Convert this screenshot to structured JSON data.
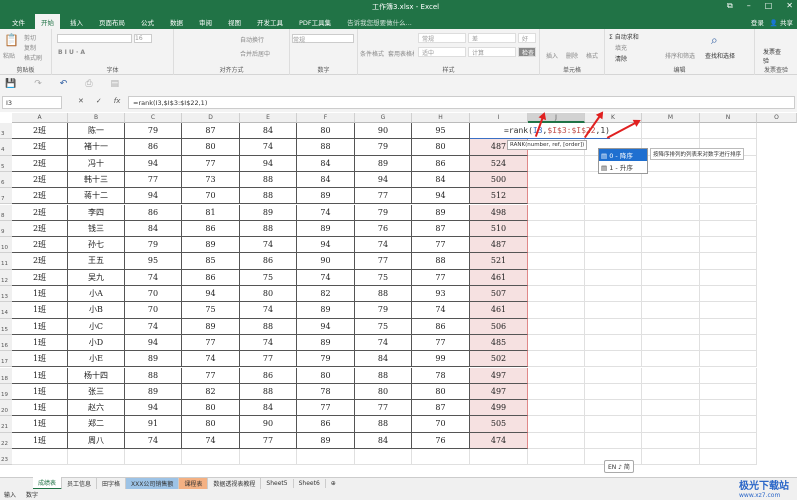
{
  "window": {
    "title": "工作簿3.xlsx - Excel",
    "controls": [
      "⧉",
      "–",
      "□",
      "✕"
    ]
  },
  "ribbon_tabs": [
    "文件",
    "开始",
    "插入",
    "页面布局",
    "公式",
    "数据",
    "审阅",
    "视图",
    "开发工具",
    "PDF工具集"
  ],
  "active_tab": "开始",
  "tell_me": "告诉我您想要做什么...",
  "account": {
    "login": "登录",
    "share": "共享"
  },
  "ribbon": {
    "clipboard": {
      "label": "剪贴板",
      "paste": "粘贴",
      "cut": "剪切",
      "copy": "复制",
      "format_painter": "格式刷"
    },
    "font": {
      "label": "字体",
      "size": "16"
    },
    "alignment": {
      "label": "对齐方式",
      "wrap": "自动换行",
      "merge": "合并后居中"
    },
    "number": {
      "label": "数字",
      "format": "常规"
    },
    "styles": {
      "label": "样式",
      "conditional": "条件格式",
      "table": "套用表格格式",
      "cells": [
        "常规",
        "差",
        "好",
        "适中",
        "计算",
        "检查单元格"
      ]
    },
    "cells": {
      "label": "单元格",
      "insert": "插入",
      "delete": "删除",
      "format": "格式"
    },
    "editing": {
      "label": "编辑",
      "autosum": "自动求和",
      "fill": "填充",
      "clear": "清除",
      "sort": "排序和筛选",
      "find": "查找和选择"
    },
    "invoice": {
      "label": "发票查验",
      "button": "发票查验"
    }
  },
  "formula_bar": {
    "name_box": "I3",
    "formula": "=rank(I3,$I$3:$I$22,1)",
    "cancel": "✕",
    "enter": "✓",
    "fx": "fx"
  },
  "columns": [
    "A",
    "B",
    "C",
    "D",
    "E",
    "F",
    "G",
    "H",
    "I",
    "J",
    "K",
    "M",
    "N",
    "O"
  ],
  "selected_column": "J",
  "rows": [
    {
      "n": 3,
      "v": [
        "2班",
        "陈一",
        "79",
        "87",
        "84",
        "80",
        "90",
        "95",
        ""
      ]
    },
    {
      "n": 4,
      "v": [
        "2班",
        "褚十一",
        "86",
        "80",
        "74",
        "88",
        "79",
        "80",
        "487"
      ]
    },
    {
      "n": 5,
      "v": [
        "2班",
        "冯十",
        "94",
        "77",
        "94",
        "84",
        "89",
        "86",
        "524"
      ]
    },
    {
      "n": 6,
      "v": [
        "2班",
        "韩十三",
        "77",
        "73",
        "88",
        "84",
        "94",
        "84",
        "500"
      ]
    },
    {
      "n": 7,
      "v": [
        "2班",
        "蒋十二",
        "94",
        "70",
        "88",
        "89",
        "77",
        "94",
        "512"
      ]
    },
    {
      "n": 8,
      "v": [
        "2班",
        "李四",
        "86",
        "81",
        "89",
        "74",
        "79",
        "89",
        "498"
      ]
    },
    {
      "n": 9,
      "v": [
        "2班",
        "钱三",
        "84",
        "86",
        "88",
        "89",
        "76",
        "87",
        "510"
      ]
    },
    {
      "n": 10,
      "v": [
        "2班",
        "孙七",
        "79",
        "89",
        "74",
        "94",
        "74",
        "77",
        "487"
      ]
    },
    {
      "n": 11,
      "v": [
        "2班",
        "王五",
        "95",
        "85",
        "86",
        "90",
        "77",
        "88",
        "521"
      ]
    },
    {
      "n": 12,
      "v": [
        "2班",
        "吴九",
        "74",
        "86",
        "75",
        "74",
        "75",
        "77",
        "461"
      ]
    },
    {
      "n": 13,
      "v": [
        "1班",
        "小A",
        "70",
        "94",
        "80",
        "82",
        "88",
        "93",
        "507"
      ]
    },
    {
      "n": 14,
      "v": [
        "1班",
        "小B",
        "70",
        "75",
        "74",
        "89",
        "79",
        "74",
        "461"
      ]
    },
    {
      "n": 15,
      "v": [
        "1班",
        "小C",
        "74",
        "89",
        "88",
        "94",
        "75",
        "86",
        "506"
      ]
    },
    {
      "n": 16,
      "v": [
        "1班",
        "小D",
        "94",
        "77",
        "74",
        "89",
        "74",
        "77",
        "485"
      ]
    },
    {
      "n": 17,
      "v": [
        "1班",
        "小E",
        "89",
        "74",
        "77",
        "79",
        "84",
        "99",
        "502"
      ]
    },
    {
      "n": 18,
      "v": [
        "1班",
        "杨十四",
        "88",
        "77",
        "86",
        "80",
        "88",
        "78",
        "497"
      ]
    },
    {
      "n": 19,
      "v": [
        "1班",
        "张三",
        "89",
        "82",
        "88",
        "78",
        "80",
        "80",
        "497"
      ]
    },
    {
      "n": 20,
      "v": [
        "1班",
        "赵六",
        "94",
        "80",
        "84",
        "77",
        "77",
        "87",
        "499"
      ]
    },
    {
      "n": 21,
      "v": [
        "1班",
        "郑二",
        "91",
        "80",
        "90",
        "86",
        "88",
        "70",
        "505"
      ]
    },
    {
      "n": 22,
      "v": [
        "1班",
        "周八",
        "74",
        "74",
        "77",
        "89",
        "84",
        "76",
        "474"
      ]
    },
    {
      "n": 23,
      "v": [
        "",
        "",
        "",
        "",
        "",
        "",
        "",
        "",
        ""
      ]
    }
  ],
  "editing_formula": {
    "prefix": "=rank(",
    "ref": "I3",
    "sep1": ",",
    "range": "$I$3:$I$22",
    "suffix": ",1)"
  },
  "tooltip": "RANK(number, ref, [order])",
  "autocomplete": {
    "options": [
      "0 - 降序",
      "1 - 升序"
    ],
    "selected": 0,
    "description": "按降序排列的列表来对数字进行排序"
  },
  "sheets": [
    "成绩表",
    "员工信息",
    "田字格",
    "XXX公司销售额",
    "课程表",
    "数据透视表教程",
    "Sheet5",
    "Sheet6"
  ],
  "active_sheet": "成绩表",
  "status": {
    "mode": "输入",
    "num": "数字"
  },
  "ime": "EN ♪ 简",
  "watermark": {
    "name": "极光下载站",
    "url": "www.xz7.com"
  },
  "colors": {
    "excel_green": "#217346",
    "rank_fill": "#f6e1e1",
    "arrow": "#e02020"
  }
}
